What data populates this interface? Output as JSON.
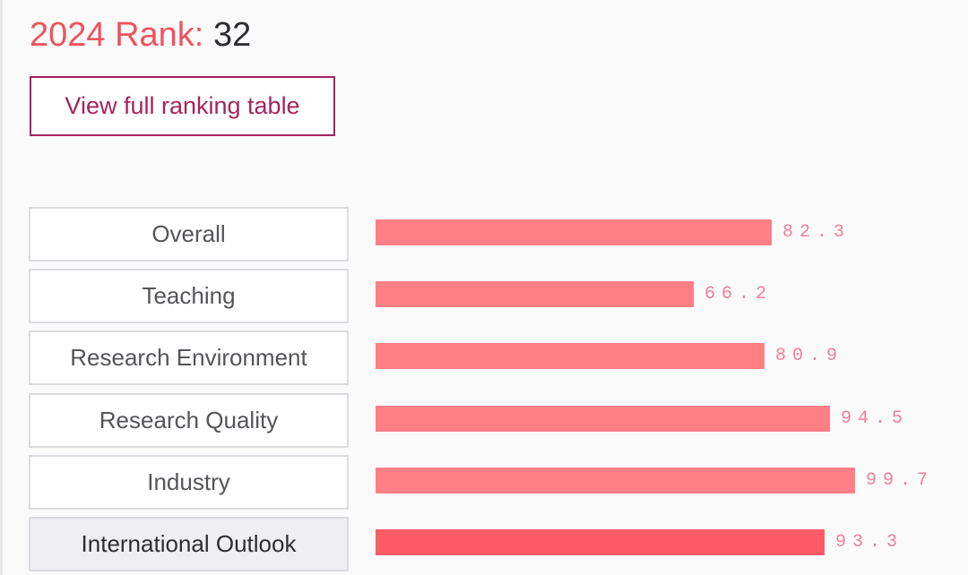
{
  "header": {
    "rank_label": "2024 Rank:",
    "rank_value": "32"
  },
  "actions": {
    "view_table_label": "View full ranking table"
  },
  "colors": {
    "accent": "#f0525e",
    "button": "#a6245c",
    "bar": "#ff7f87",
    "bar_active": "#ff5a66",
    "value_text": "#f27e98"
  },
  "chart_data": {
    "type": "bar",
    "orientation": "horizontal",
    "categories": [
      "Overall",
      "Teaching",
      "Research Environment",
      "Research Quality",
      "Industry",
      "International Outlook"
    ],
    "values": [
      82.3,
      66.2,
      80.9,
      94.5,
      99.7,
      93.3
    ],
    "value_labels": [
      "82.3",
      "66.2",
      "80.9",
      "94.5",
      "99.7",
      "93.3"
    ],
    "selected": "International Outlook",
    "xlim": [
      0,
      100
    ],
    "grid": false
  }
}
